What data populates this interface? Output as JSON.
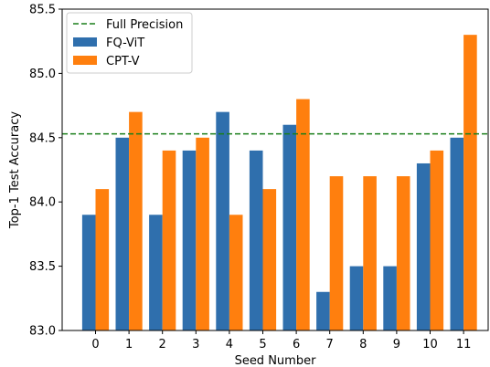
{
  "chart_data": {
    "type": "bar",
    "xlabel": "Seed Number",
    "ylabel": "Top-1 Test Accuracy",
    "categories": [
      "0",
      "1",
      "2",
      "3",
      "4",
      "5",
      "6",
      "7",
      "8",
      "9",
      "10",
      "11"
    ],
    "ylim": [
      83.0,
      85.5
    ],
    "yticks": [
      "83.0",
      "83.5",
      "84.0",
      "84.5",
      "85.0",
      "85.5"
    ],
    "series": [
      {
        "name": "FQ-ViT",
        "color": "#2f6fad",
        "values": [
          83.9,
          84.5,
          83.9,
          84.4,
          84.7,
          84.4,
          84.6,
          83.3,
          83.5,
          83.5,
          84.3,
          84.5
        ]
      },
      {
        "name": "CPT-V",
        "color": "#ff7f0e",
        "values": [
          84.1,
          84.7,
          84.4,
          84.5,
          83.9,
          84.1,
          84.8,
          84.2,
          84.2,
          84.2,
          84.4,
          85.3
        ]
      }
    ],
    "reference_line": {
      "name": "Full Precision",
      "value": 84.53,
      "color": "#1a7f1a",
      "style": "dashed"
    },
    "legend_position": "top-left",
    "grid": false
  }
}
